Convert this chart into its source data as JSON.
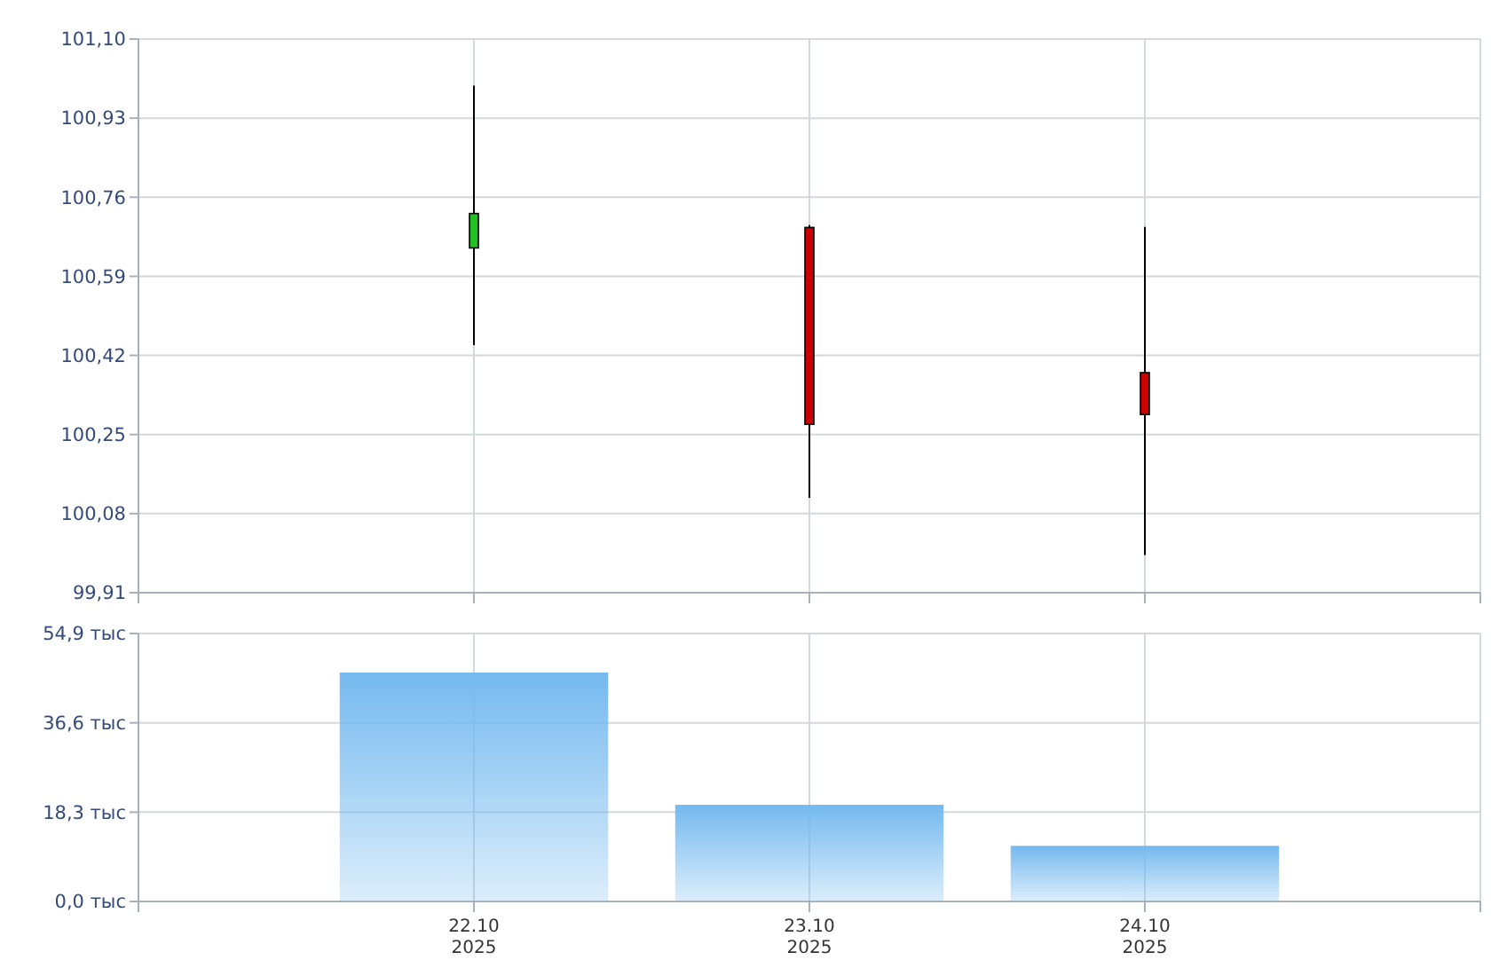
{
  "chart_data": [
    {
      "type": "candlestick",
      "categories": [
        null,
        null,
        null
      ],
      "ohlc": [
        [
          100.651,
          101.0,
          100.442,
          100.725
        ],
        [
          100.695,
          100.7,
          100.114,
          100.272
        ],
        [
          100.383,
          100.696,
          99.991,
          100.293
        ]
      ],
      "colors": [
        "#22c022",
        "#cc0000",
        "#cc0000"
      ],
      "ylim": [
        99.91,
        101.1
      ],
      "yticks": [
        {
          "value": 99.91,
          "label": "99,91"
        },
        {
          "value": 100.08,
          "label": "100,08"
        },
        {
          "value": 100.25,
          "label": "100,25"
        },
        {
          "value": 100.42,
          "label": "100,42"
        },
        {
          "value": 100.59,
          "label": "100,59"
        },
        {
          "value": 100.76,
          "label": "100,76"
        },
        {
          "value": 100.93,
          "label": "100,93"
        },
        {
          "value": 101.1,
          "label": "101,10"
        }
      ],
      "grid": true,
      "tick_labels": "y"
    },
    {
      "type": "bar",
      "categories": [
        "22.10\n2025",
        "23.10\n2025",
        "24.10\n2025"
      ],
      "values": [
        46.9,
        19.8,
        11.4
      ],
      "color": "#74b9ef",
      "ylim": [
        0,
        54.9
      ],
      "yticks": [
        {
          "value": 0,
          "label": "0,0 тыс"
        },
        {
          "value": 18.3,
          "label": "18,3 тыс"
        },
        {
          "value": 36.6,
          "label": "36,6 тыс"
        },
        {
          "value": 54.9,
          "label": "54,9 тыс"
        }
      ],
      "grid": true
    }
  ]
}
